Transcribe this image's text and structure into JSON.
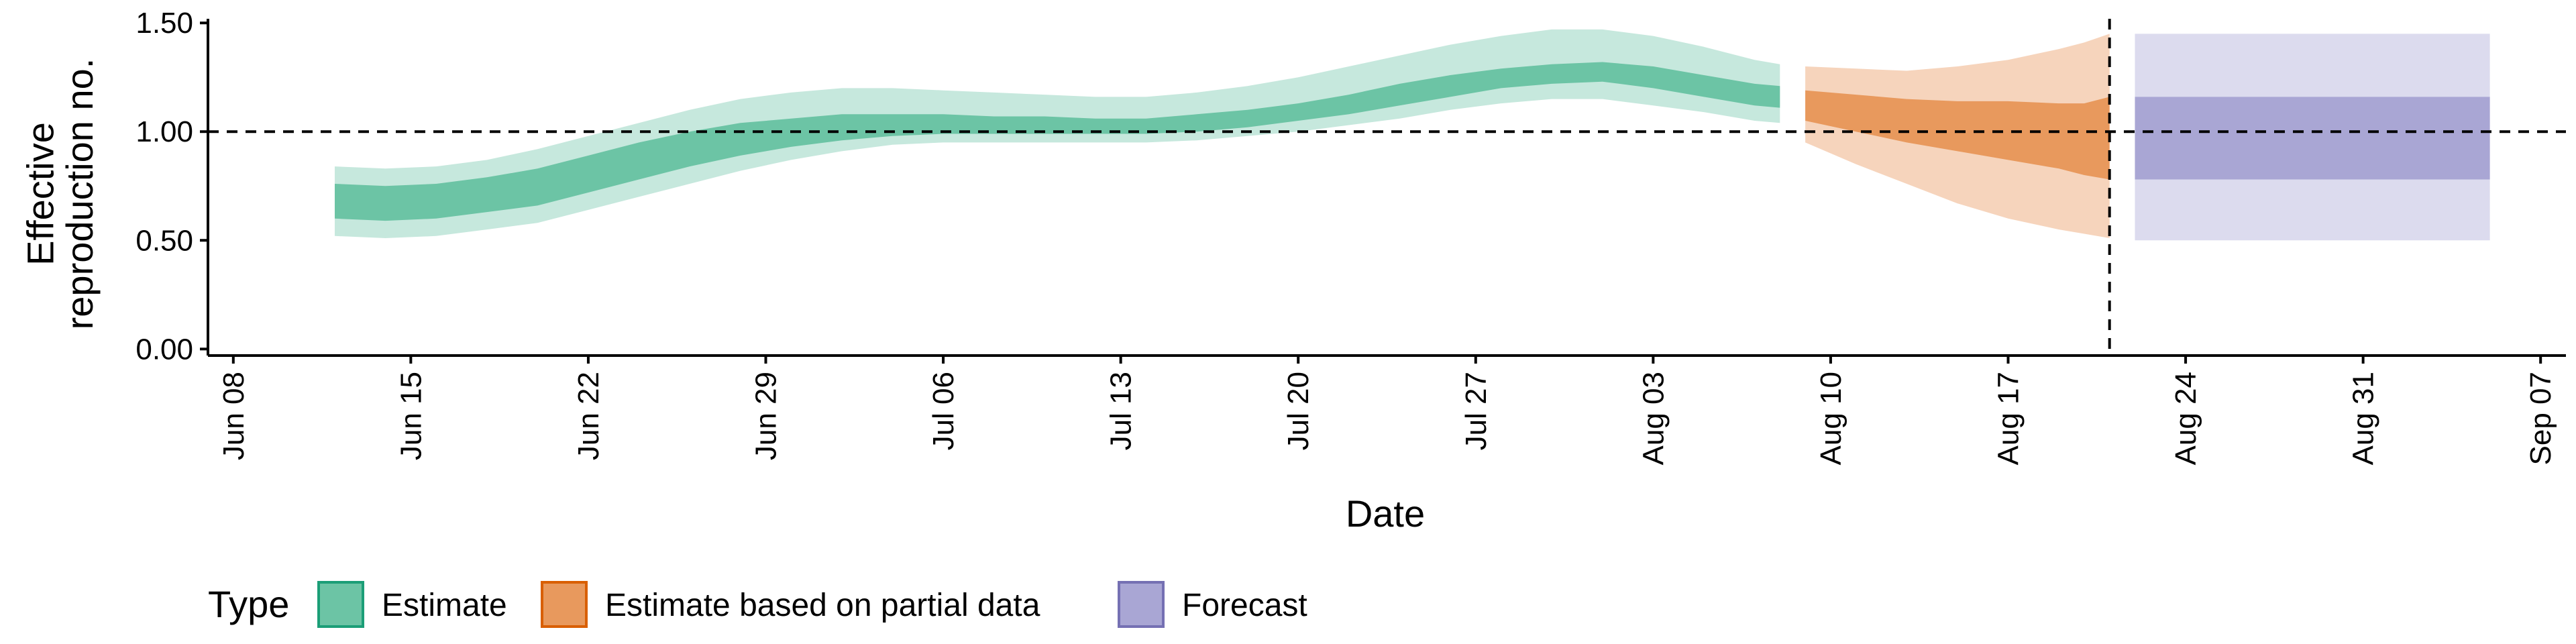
{
  "chart_data": {
    "type": "area",
    "xlabel": "Date",
    "ylabel": "Effective\nreproduction no.",
    "x_axis": {
      "type": "date",
      "range": [
        "2020-06-07",
        "2020-09-08"
      ],
      "ticks": [
        "2020-06-08",
        "2020-06-15",
        "2020-06-22",
        "2020-06-29",
        "2020-07-06",
        "2020-07-13",
        "2020-07-20",
        "2020-07-27",
        "2020-08-03",
        "2020-08-10",
        "2020-08-17",
        "2020-08-24",
        "2020-08-31",
        "2020-09-07"
      ],
      "tick_labels": [
        "Jun 08",
        "Jun 15",
        "Jun 22",
        "Jun 29",
        "Jul 06",
        "Jul 13",
        "Jul 20",
        "Jul 27",
        "Aug 03",
        "Aug 10",
        "Aug 17",
        "Aug 24",
        "Aug 31",
        "Sep 07"
      ]
    },
    "y_axis": {
      "range": [
        -0.03,
        1.55
      ],
      "ticks": [
        0,
        0.5,
        1.0,
        1.5
      ],
      "tick_labels": [
        "0.00",
        "0.50",
        "1.00",
        "1.50"
      ]
    },
    "reference_lines": {
      "horizontal_y": 1.0,
      "vertical_x": "2020-08-21",
      "style": "dashed"
    },
    "grid": false,
    "legend": {
      "position": "bottom-left",
      "title": "Type",
      "entries": [
        {
          "label": "Estimate",
          "key": "estimate"
        },
        {
          "label": "Estimate based on partial data",
          "key": "partial"
        },
        {
          "label": "Forecast",
          "key": "forecast"
        }
      ]
    },
    "colors": {
      "estimate_inner": "#6cc4a5",
      "estimate_outer": "#c6e8dd",
      "estimate_border": "#1b9e77",
      "partial_inner": "#e8995d",
      "partial_outer": "#f6d4bc",
      "partial_border": "#d95f02",
      "forecast_inner": "#a9a6d4",
      "forecast_outer": "#dcdbee",
      "forecast_border": "#7570b3",
      "axis": "#000000"
    },
    "series": [
      {
        "key": "estimate",
        "x": [
          "2020-06-12",
          "2020-06-14",
          "2020-06-16",
          "2020-06-18",
          "2020-06-20",
          "2020-06-22",
          "2020-06-24",
          "2020-06-26",
          "2020-06-28",
          "2020-06-30",
          "2020-07-02",
          "2020-07-04",
          "2020-07-06",
          "2020-07-08",
          "2020-07-10",
          "2020-07-12",
          "2020-07-14",
          "2020-07-16",
          "2020-07-18",
          "2020-07-20",
          "2020-07-22",
          "2020-07-24",
          "2020-07-26",
          "2020-07-28",
          "2020-07-30",
          "2020-08-01",
          "2020-08-03",
          "2020-08-05",
          "2020-08-07",
          "2020-08-08"
        ],
        "inner_lower": [
          0.6,
          0.59,
          0.6,
          0.63,
          0.66,
          0.72,
          0.78,
          0.84,
          0.89,
          0.93,
          0.96,
          0.98,
          0.99,
          0.99,
          0.99,
          0.99,
          0.99,
          1.0,
          1.02,
          1.05,
          1.08,
          1.12,
          1.16,
          1.2,
          1.22,
          1.23,
          1.2,
          1.16,
          1.12,
          1.11
        ],
        "inner_upper": [
          0.76,
          0.75,
          0.76,
          0.79,
          0.83,
          0.89,
          0.95,
          1.0,
          1.04,
          1.06,
          1.08,
          1.08,
          1.08,
          1.07,
          1.07,
          1.06,
          1.06,
          1.08,
          1.1,
          1.13,
          1.17,
          1.22,
          1.26,
          1.29,
          1.31,
          1.32,
          1.3,
          1.26,
          1.22,
          1.21
        ],
        "outer_lower": [
          0.52,
          0.51,
          0.52,
          0.55,
          0.58,
          0.64,
          0.7,
          0.76,
          0.82,
          0.87,
          0.91,
          0.94,
          0.95,
          0.95,
          0.95,
          0.95,
          0.95,
          0.96,
          0.98,
          1.0,
          1.03,
          1.06,
          1.1,
          1.13,
          1.15,
          1.15,
          1.12,
          1.09,
          1.05,
          1.04
        ],
        "outer_upper": [
          0.84,
          0.83,
          0.84,
          0.87,
          0.92,
          0.98,
          1.04,
          1.1,
          1.15,
          1.18,
          1.2,
          1.2,
          1.19,
          1.18,
          1.17,
          1.16,
          1.16,
          1.18,
          1.21,
          1.25,
          1.3,
          1.35,
          1.4,
          1.44,
          1.47,
          1.47,
          1.44,
          1.39,
          1.33,
          1.31
        ]
      },
      {
        "key": "partial",
        "x": [
          "2020-08-09",
          "2020-08-11",
          "2020-08-13",
          "2020-08-15",
          "2020-08-17",
          "2020-08-19",
          "2020-08-20",
          "2020-08-21"
        ],
        "inner_lower": [
          1.05,
          1.0,
          0.95,
          0.91,
          0.87,
          0.83,
          0.8,
          0.78
        ],
        "inner_upper": [
          1.19,
          1.17,
          1.15,
          1.14,
          1.14,
          1.13,
          1.13,
          1.16
        ],
        "outer_lower": [
          0.95,
          0.85,
          0.76,
          0.67,
          0.6,
          0.55,
          0.53,
          0.51
        ],
        "outer_upper": [
          1.3,
          1.29,
          1.28,
          1.3,
          1.33,
          1.38,
          1.41,
          1.45
        ]
      },
      {
        "key": "forecast",
        "x": [
          "2020-08-22",
          "2020-09-05"
        ],
        "inner_lower": [
          0.78,
          0.78
        ],
        "inner_upper": [
          1.16,
          1.16
        ],
        "outer_lower": [
          0.5,
          0.5
        ],
        "outer_upper": [
          1.45,
          1.45
        ]
      }
    ]
  }
}
